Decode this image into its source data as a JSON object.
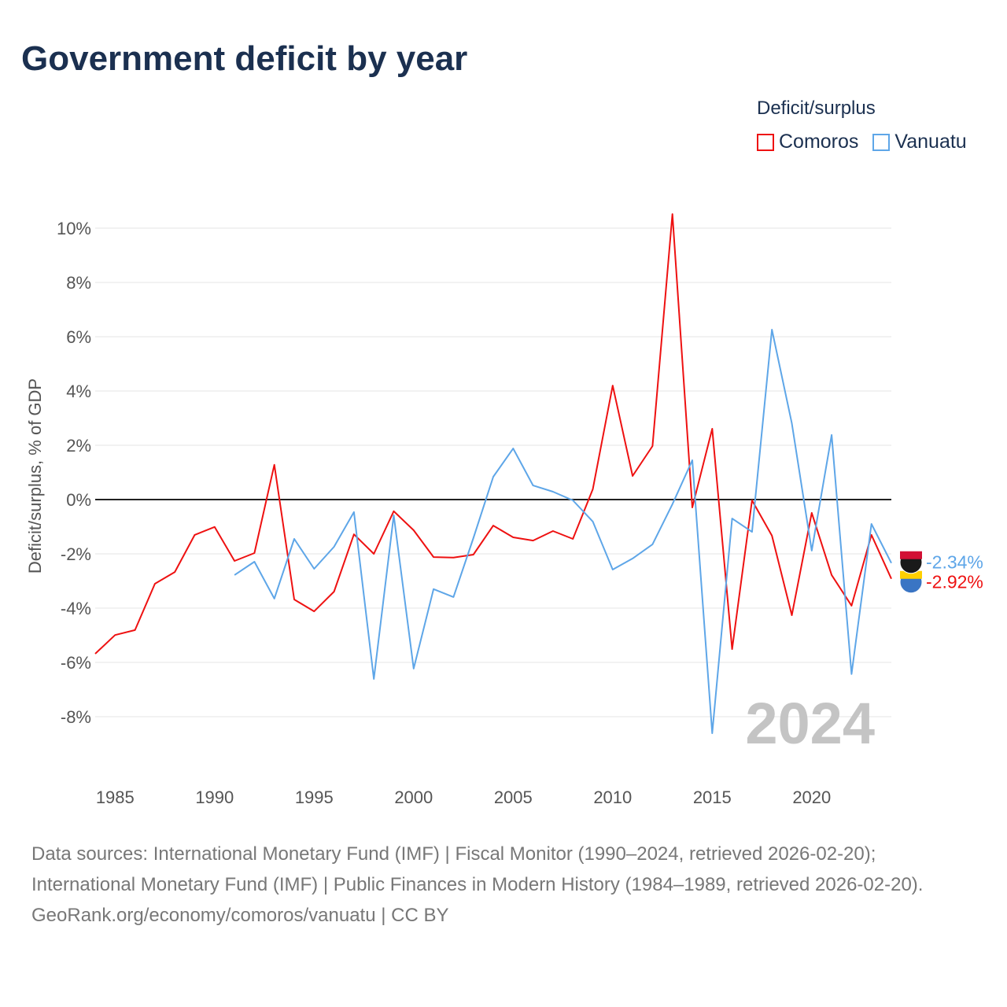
{
  "title": "Government deficit by year",
  "legend": {
    "title": "Deficit/surplus",
    "items": [
      {
        "name": "Comoros",
        "color": "#ee1111"
      },
      {
        "name": "Vanuatu",
        "color": "#5ea6e8"
      }
    ]
  },
  "footer": {
    "sources": "Data sources: International Monetary Fund (IMF) | Fiscal Monitor (1990–2024, retrieved 2026-02-20); International Monetary Fund (IMF) | Public Finances in Modern History (1984–1989, retrieved 2026-02-20).",
    "link": "GeoRank.org/economy/comoros/vanuatu | CC BY"
  },
  "chart_data": {
    "type": "line",
    "ylabel": "Deficit/surplus, % of GDP",
    "year_watermark": "2024",
    "xlim": [
      1984,
      2024
    ],
    "ylim": [
      -10,
      11
    ],
    "xticks": [
      1985,
      1990,
      1995,
      2000,
      2005,
      2010,
      2015,
      2020
    ],
    "yticks": [
      -8,
      -6,
      -4,
      -2,
      0,
      2,
      4,
      6,
      8,
      10
    ],
    "series": [
      {
        "name": "Comoros",
        "color": "#ee1111",
        "end_label": "-2.92%",
        "start": 1984,
        "values": [
          -5.68,
          -4.99,
          -4.81,
          -3.1,
          -2.67,
          -1.3,
          -1.01,
          -2.26,
          -1.97,
          1.28,
          -3.68,
          -4.12,
          -3.39,
          -1.28,
          -2.0,
          -0.43,
          -1.13,
          -2.12,
          -2.14,
          -2.03,
          -0.96,
          -1.39,
          -1.51,
          -1.16,
          -1.45,
          0.38,
          4.2,
          0.87,
          1.97,
          10.52,
          -0.29,
          2.61,
          -5.51,
          -0.03,
          -1.33,
          -4.26,
          -0.49,
          -2.78,
          -3.91,
          -1.3,
          -2.92
        ]
      },
      {
        "name": "Vanuatu",
        "color": "#5ea6e8",
        "end_label": "-2.34%",
        "start": 1991,
        "values": [
          -2.78,
          -2.29,
          -3.65,
          -1.45,
          -2.55,
          -1.74,
          -0.46,
          -6.61,
          -0.58,
          -6.23,
          -3.3,
          -3.59,
          -1.42,
          0.84,
          1.88,
          0.52,
          0.29,
          -0.03,
          -0.81,
          -2.58,
          -2.17,
          -1.65,
          -0.17,
          1.45,
          -8.61,
          -0.7,
          -1.19,
          6.26,
          2.81,
          -1.88,
          2.38,
          -6.43,
          -0.9,
          -2.34
        ]
      }
    ]
  }
}
